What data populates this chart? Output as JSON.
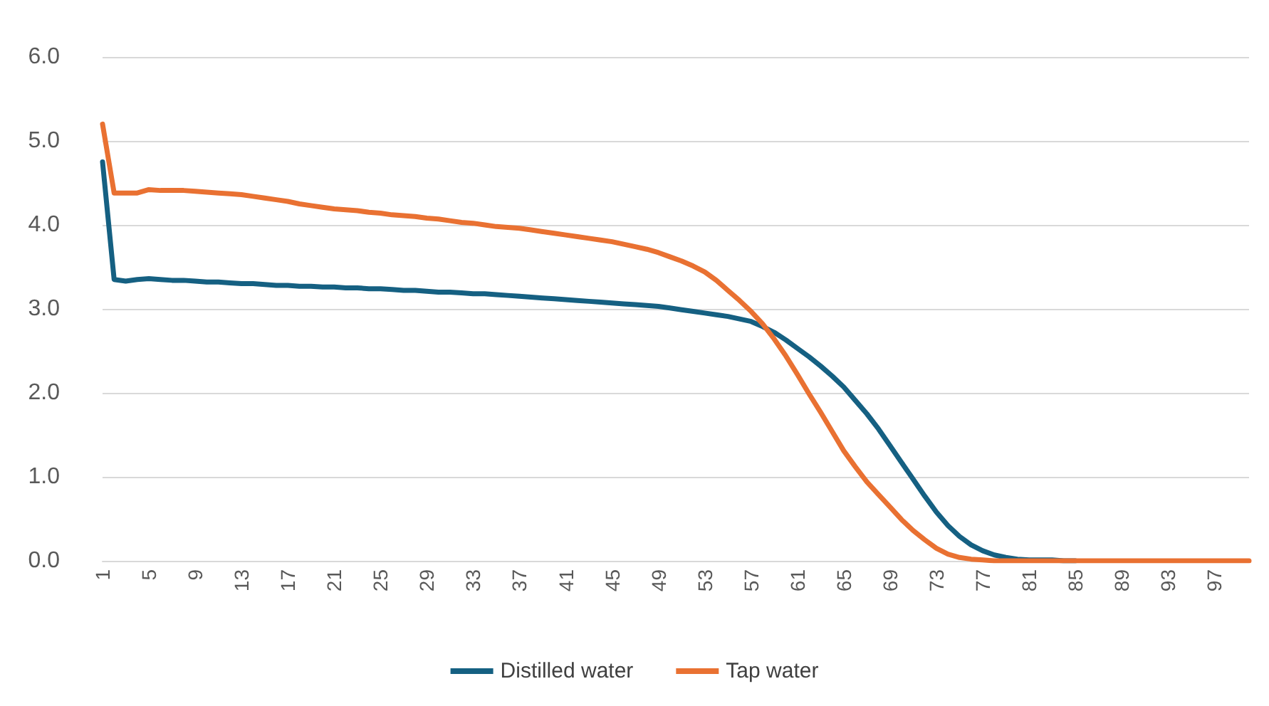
{
  "chart_data": {
    "type": "line",
    "categories": [
      "1",
      null,
      null,
      null,
      "5",
      null,
      null,
      null,
      "9",
      null,
      null,
      null,
      "13",
      null,
      null,
      null,
      "17",
      null,
      null,
      null,
      "21",
      null,
      null,
      null,
      "25",
      null,
      null,
      null,
      "29",
      null,
      null,
      null,
      "33",
      null,
      null,
      null,
      "37",
      null,
      null,
      null,
      "41",
      null,
      null,
      null,
      "45",
      null,
      null,
      null,
      "49",
      null,
      null,
      null,
      "53",
      null,
      null,
      null,
      "57",
      null,
      null,
      null,
      "61",
      null,
      null,
      null,
      "65",
      null,
      null,
      null,
      "69",
      null,
      null,
      null,
      "73",
      null,
      null,
      null,
      "77",
      null,
      null,
      null,
      "81",
      null,
      null,
      null,
      "85",
      null,
      null,
      null,
      "89",
      null,
      null,
      null,
      "93",
      null,
      null,
      null,
      "97",
      null,
      null,
      null
    ],
    "series": [
      {
        "name": "Distilled water",
        "color": "#156082",
        "values": [
          4.75,
          3.35,
          3.33,
          3.35,
          3.36,
          3.35,
          3.34,
          3.34,
          3.33,
          3.32,
          3.32,
          3.31,
          3.3,
          3.3,
          3.29,
          3.28,
          3.28,
          3.27,
          3.27,
          3.26,
          3.26,
          3.25,
          3.25,
          3.24,
          3.24,
          3.23,
          3.22,
          3.22,
          3.21,
          3.2,
          3.2,
          3.19,
          3.18,
          3.18,
          3.17,
          3.16,
          3.15,
          3.14,
          3.13,
          3.12,
          3.11,
          3.1,
          3.09,
          3.08,
          3.07,
          3.06,
          3.05,
          3.04,
          3.03,
          3.01,
          2.99,
          2.97,
          2.95,
          2.93,
          2.91,
          2.88,
          2.85,
          2.79,
          2.72,
          2.63,
          2.53,
          2.43,
          2.32,
          2.2,
          2.07,
          1.91,
          1.75,
          1.57,
          1.37,
          1.17,
          0.97,
          0.77,
          0.58,
          0.42,
          0.29,
          0.19,
          0.12,
          0.07,
          0.04,
          0.02,
          0.01,
          0.01,
          0.01,
          0,
          0,
          null,
          null,
          null,
          null,
          null,
          null,
          null,
          null,
          null,
          null,
          null,
          null,
          null,
          null,
          null
        ]
      },
      {
        "name": "Tap water",
        "color": "#e97132",
        "values": [
          5.2,
          4.38,
          4.38,
          4.38,
          4.42,
          4.41,
          4.41,
          4.41,
          4.4,
          4.39,
          4.38,
          4.37,
          4.36,
          4.34,
          4.32,
          4.3,
          4.28,
          4.25,
          4.23,
          4.21,
          4.19,
          4.18,
          4.17,
          4.15,
          4.14,
          4.12,
          4.11,
          4.1,
          4.08,
          4.07,
          4.05,
          4.03,
          4.02,
          4.0,
          3.98,
          3.97,
          3.96,
          3.94,
          3.92,
          3.9,
          3.88,
          3.86,
          3.84,
          3.82,
          3.8,
          3.77,
          3.74,
          3.71,
          3.67,
          3.62,
          3.57,
          3.51,
          3.44,
          3.34,
          3.22,
          3.1,
          2.97,
          2.82,
          2.64,
          2.44,
          2.22,
          1.99,
          1.77,
          1.54,
          1.31,
          1.12,
          0.94,
          0.79,
          0.64,
          0.49,
          0.36,
          0.25,
          0.15,
          0.08,
          0.04,
          0.02,
          0.01,
          0,
          0,
          0,
          0,
          0,
          0,
          0,
          0,
          0,
          0,
          0,
          0,
          0,
          0,
          0,
          0,
          0,
          0,
          0,
          0,
          0,
          0,
          0
        ]
      }
    ],
    "ylim": [
      0,
      6
    ],
    "yticks": [
      {
        "value": 0,
        "label": "0.0"
      },
      {
        "value": 1,
        "label": "1.0"
      },
      {
        "value": 2,
        "label": "2.0"
      },
      {
        "value": 3,
        "label": "3.0"
      },
      {
        "value": 4,
        "label": "4.0"
      },
      {
        "value": 5,
        "label": "5.0"
      },
      {
        "value": 6,
        "label": "6.0"
      }
    ],
    "grid": "y",
    "legend": "bottom",
    "marker": "none",
    "line_style": "solid"
  }
}
